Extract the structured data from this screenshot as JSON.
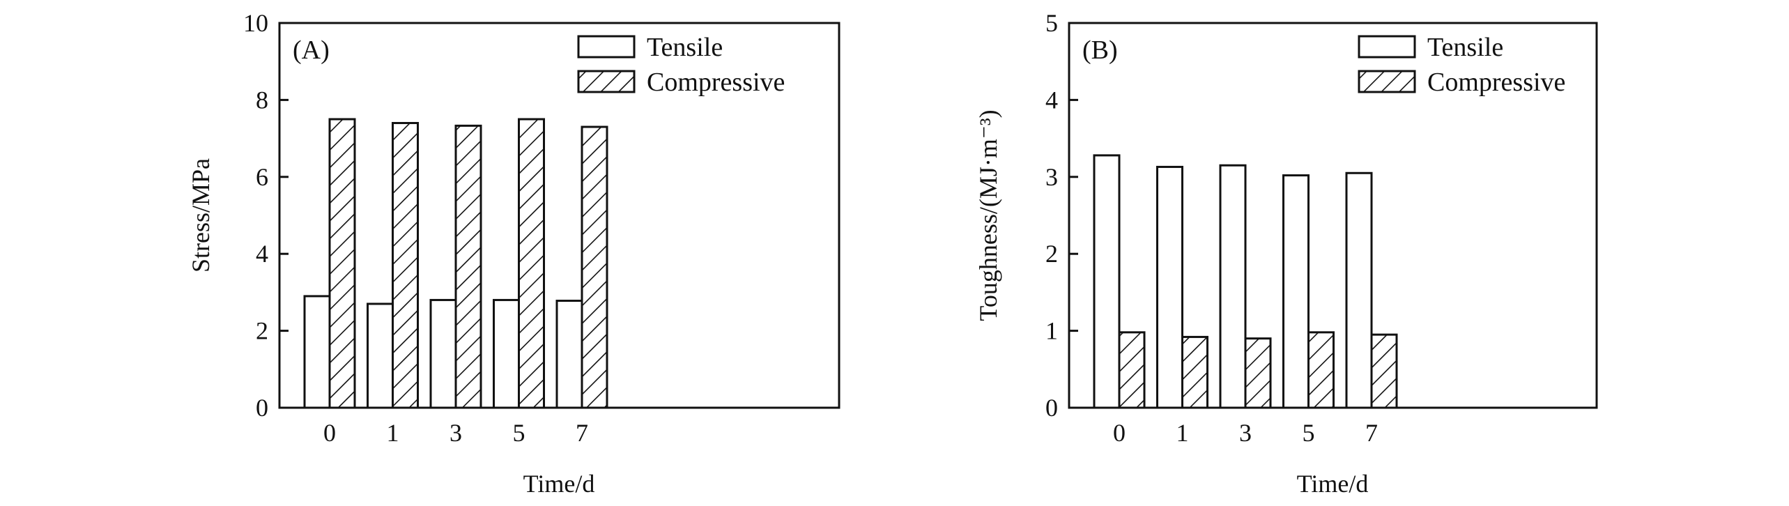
{
  "chart_data": [
    {
      "type": "bar",
      "panel_label": "(A)",
      "categories": [
        "0",
        "1",
        "3",
        "5",
        "7"
      ],
      "series": [
        {
          "name": "Tensile",
          "pattern": "none",
          "values": [
            2.9,
            2.7,
            2.8,
            2.8,
            2.78
          ]
        },
        {
          "name": "Compressive",
          "pattern": "hatched",
          "values": [
            7.5,
            7.4,
            7.33,
            7.5,
            7.3
          ]
        }
      ],
      "xlabel": "Time/d",
      "ylabel": "Stress/MPa",
      "ylim": [
        0,
        10
      ],
      "yticks": [
        "0",
        "2",
        "4",
        "6",
        "8",
        "10"
      ],
      "legend_position": "top-right"
    },
    {
      "type": "bar",
      "panel_label": "(B)",
      "categories": [
        "0",
        "1",
        "3",
        "5",
        "7"
      ],
      "series": [
        {
          "name": "Tensile",
          "pattern": "none",
          "values": [
            3.28,
            3.13,
            3.15,
            3.02,
            3.05
          ]
        },
        {
          "name": "Compressive",
          "pattern": "hatched",
          "values": [
            0.98,
            0.92,
            0.9,
            0.98,
            0.95
          ]
        }
      ],
      "xlabel": "Time/d",
      "ylabel": "Toughness/(MJ·m⁻³)",
      "ylim": [
        0,
        5
      ],
      "yticks": [
        "0",
        "1",
        "2",
        "3",
        "4",
        "5"
      ],
      "legend_position": "top-right"
    }
  ],
  "colors": {
    "axis": "#111111",
    "bar_fill": "#ffffff",
    "hatch": "#111111"
  }
}
